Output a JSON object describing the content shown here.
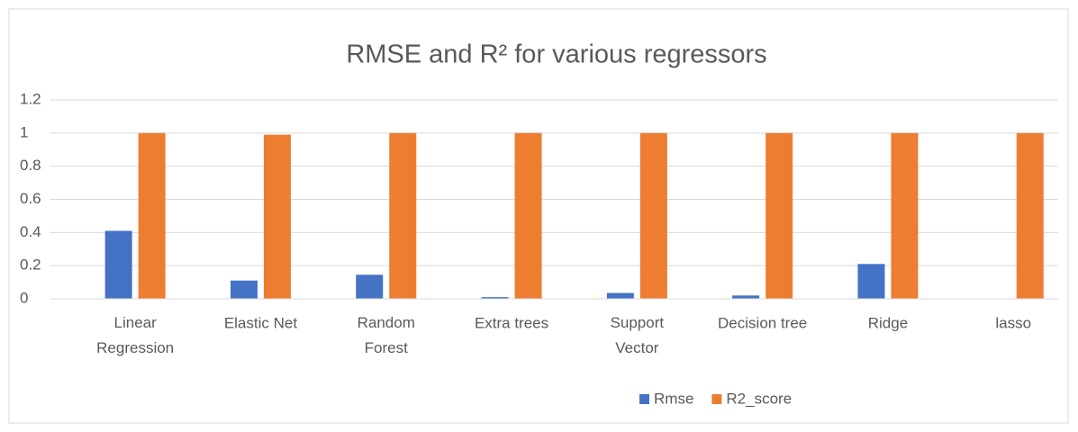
{
  "chart_data": {
    "type": "bar",
    "title": "RMSE and R² for various regressors",
    "categories": [
      "Linear Regression",
      "Elastic Net",
      "Random Forest",
      "Extra trees",
      "Support Vector",
      "Decision tree",
      "Ridge",
      "lasso"
    ],
    "series": [
      {
        "name": "Rmse",
        "color": "#4472c4",
        "values": [
          0.41,
          0.11,
          0.145,
          0.01,
          0.035,
          0.02,
          0.21,
          0
        ]
      },
      {
        "name": "R2_score",
        "color": "#ed7d31",
        "values": [
          1,
          0.99,
          1,
          1,
          1,
          1,
          1,
          1
        ]
      }
    ],
    "ylim": [
      0,
      1.2
    ],
    "yticks": [
      0,
      0.2,
      0.4,
      0.6,
      0.8,
      1,
      1.2
    ],
    "grid": true,
    "legend": "bottom"
  }
}
